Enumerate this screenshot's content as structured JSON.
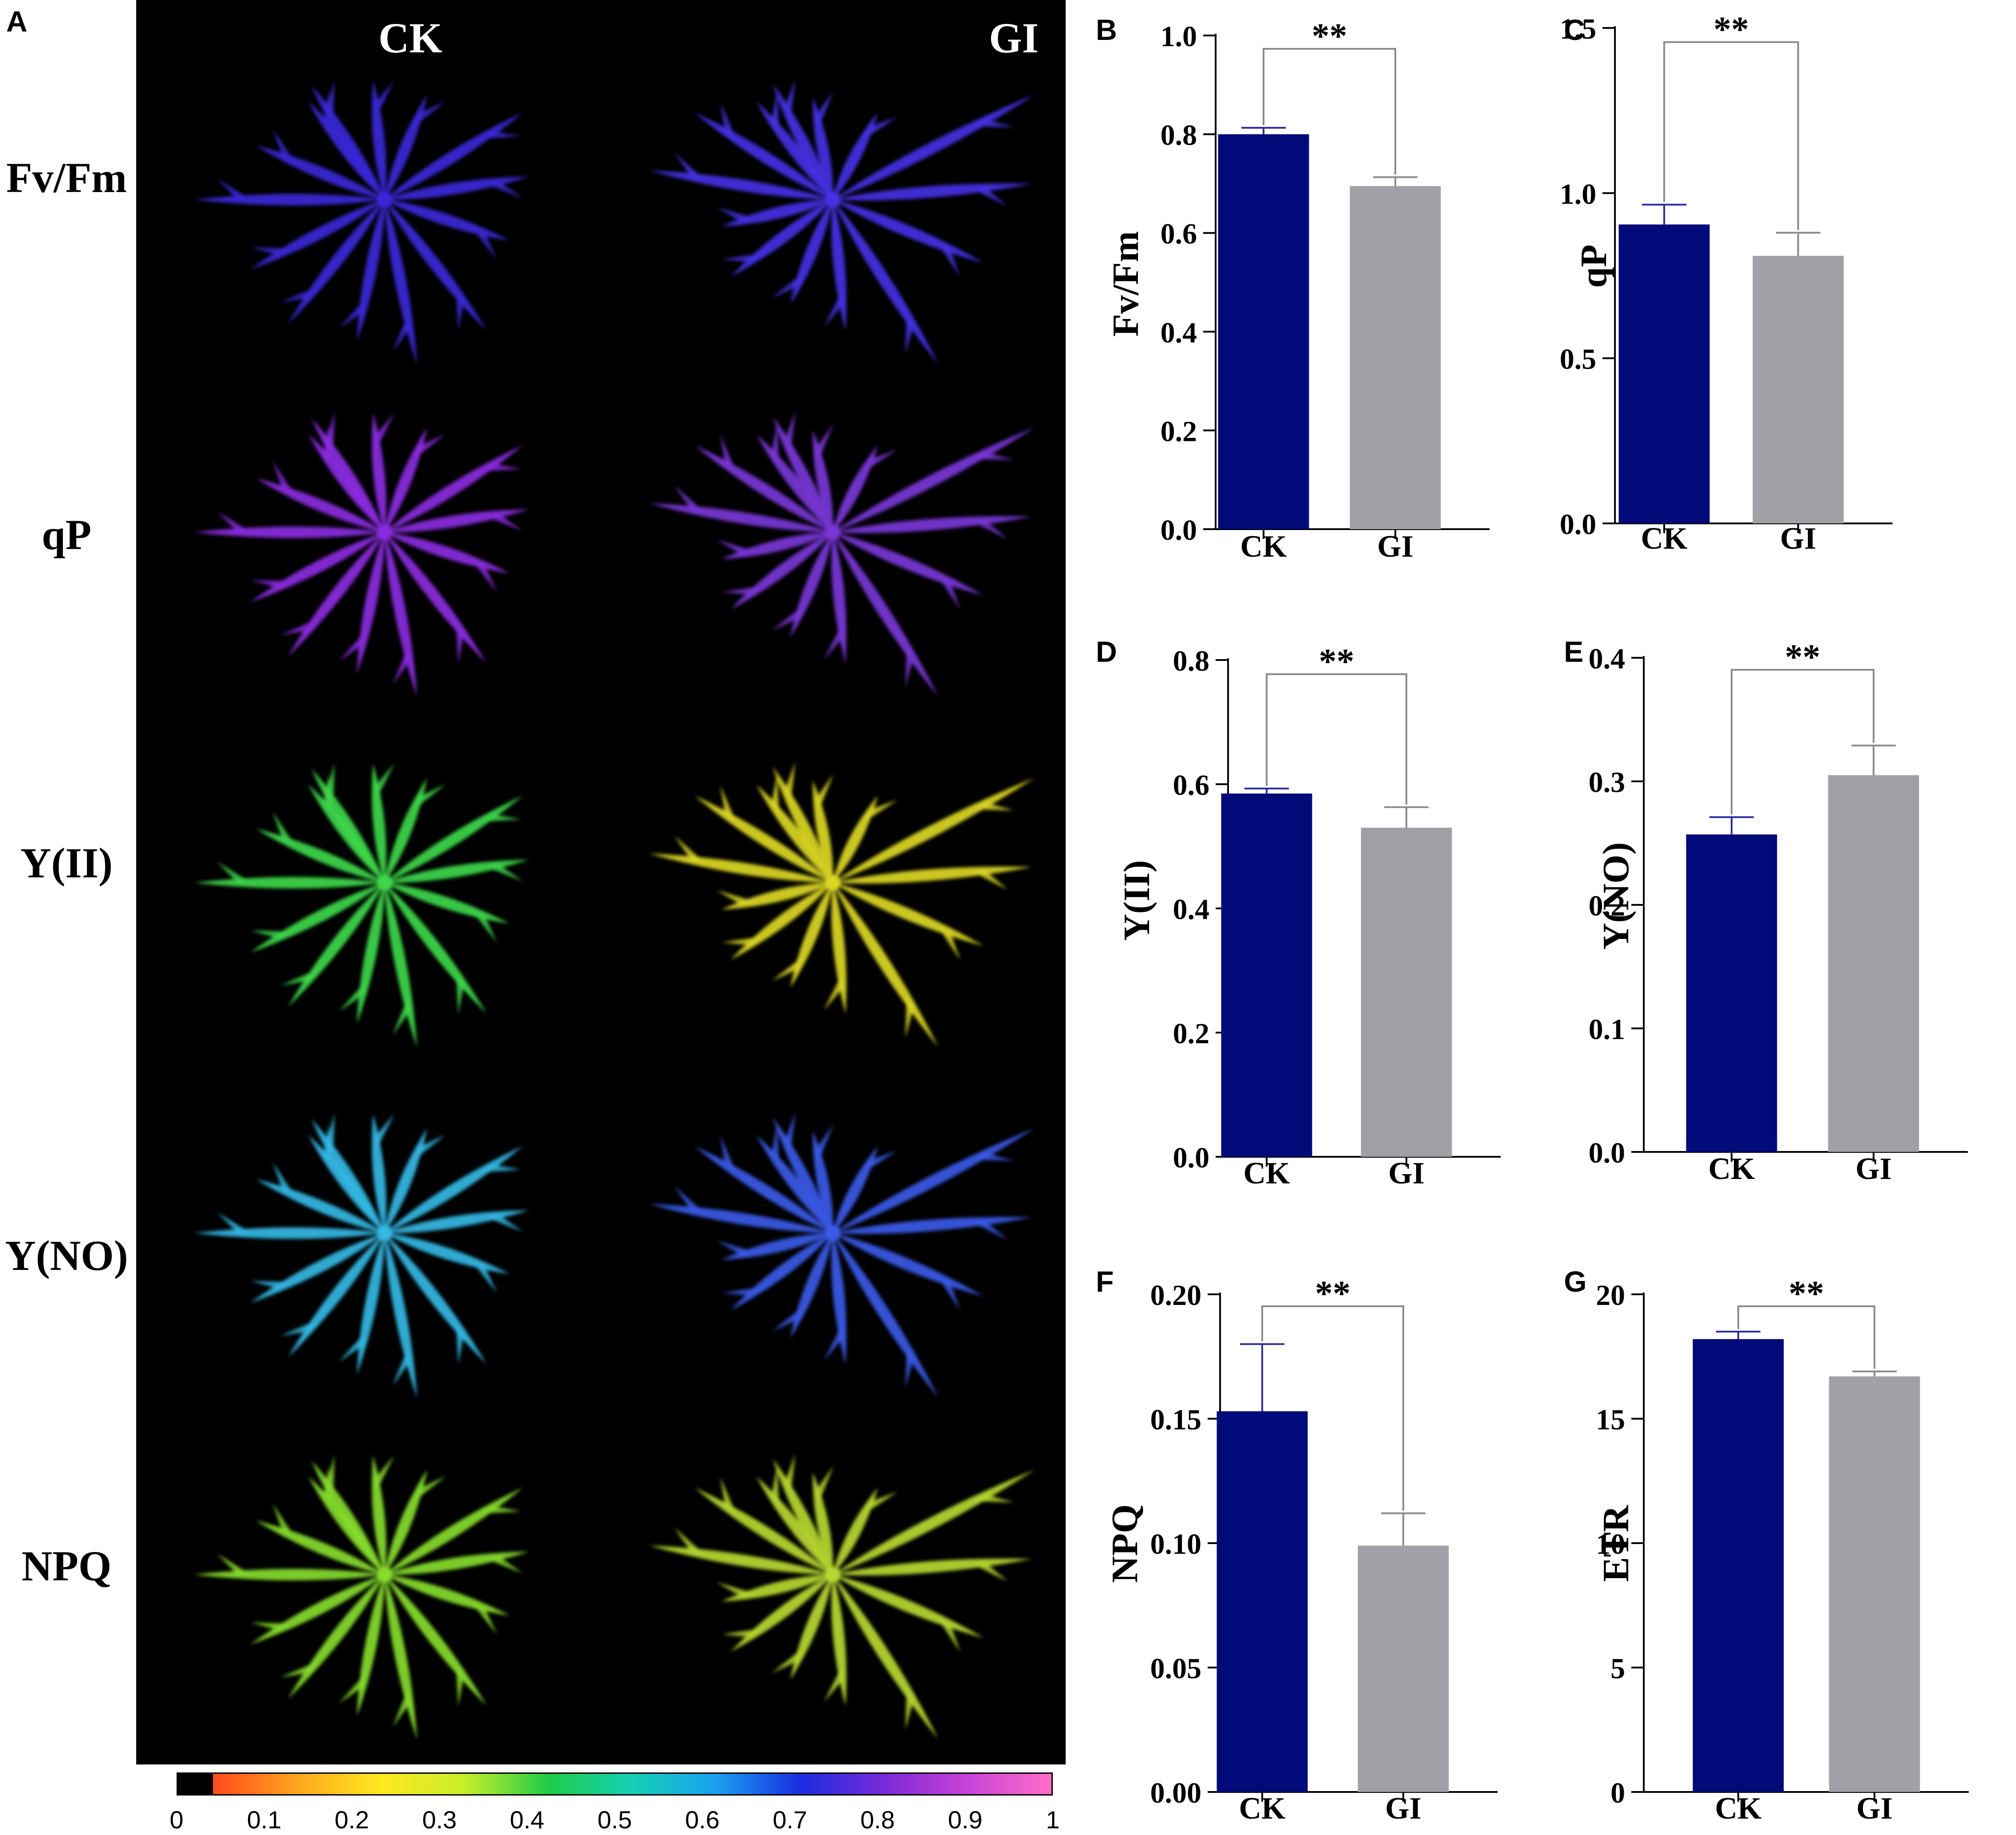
{
  "panel_a": {
    "letter": "A",
    "column_labels": [
      "CK",
      "GI"
    ],
    "row_labels": [
      "Fv/Fm",
      "qP",
      "Y(II)",
      "Y(NO)",
      "NPQ"
    ],
    "colorbar_ticks": [
      "0",
      "0.1",
      "0.2",
      "0.3",
      "0.4",
      "0.5",
      "0.6",
      "0.7",
      "0.8",
      "0.9",
      "1"
    ],
    "colorbar_colors": [
      "#000000",
      "#ff4a1a",
      "#ffa51e",
      "#ffe81e",
      "#c8ee28",
      "#1fcc46",
      "#14d0b4",
      "#1aa0f0",
      "#1a2ee0",
      "#7a2ad8",
      "#c844d8",
      "#ff6cc8"
    ],
    "colormap_by_row": [
      [
        "#3a28d8",
        "#4432e4"
      ],
      [
        "#8a2ae0",
        "#7a36d8"
      ],
      [
        "#3ed84a",
        "#dcd824"
      ],
      [
        "#34b8e4",
        "#3a5ae8"
      ],
      [
        "#86dc2c",
        "#b8d830"
      ]
    ]
  },
  "chart_data": [
    {
      "panel": "B",
      "type": "bar",
      "categories": [
        "CK",
        "GI"
      ],
      "values": [
        0.8,
        0.695
      ],
      "errors": [
        0.013,
        0.018
      ],
      "ylabel": "Fv/Fm",
      "ylim": [
        0,
        1.0
      ],
      "yticks": [
        "0.0",
        "0.2",
        "0.4",
        "0.6",
        "0.8",
        "1.0"
      ],
      "significance": "**",
      "colors": [
        "#000a78",
        "#a0a0a6"
      ]
    },
    {
      "panel": "C",
      "type": "bar",
      "categories": [
        "CK",
        "GI"
      ],
      "values": [
        0.905,
        0.81
      ],
      "errors": [
        0.06,
        0.07
      ],
      "ylabel": "qP",
      "ylim": [
        0,
        1.5
      ],
      "yticks": [
        "0.0",
        "0.5",
        "1.0",
        "1.5"
      ],
      "significance": "**",
      "colors": [
        "#000a78",
        "#a0a0a6"
      ]
    },
    {
      "panel": "D",
      "type": "bar",
      "categories": [
        "CK",
        "GI"
      ],
      "values": [
        0.585,
        0.53
      ],
      "errors": [
        0.008,
        0.033
      ],
      "ylabel": "Y(II)",
      "ylim": [
        0,
        0.8
      ],
      "yticks": [
        "0.0",
        "0.2",
        "0.4",
        "0.6",
        "0.8"
      ],
      "significance": "**",
      "colors": [
        "#000a78",
        "#a0a0a6"
      ]
    },
    {
      "panel": "E",
      "type": "bar",
      "categories": [
        "CK",
        "GI"
      ],
      "values": [
        0.257,
        0.305
      ],
      "errors": [
        0.014,
        0.024
      ],
      "ylabel": "Y(NO)",
      "ylim": [
        0,
        0.4
      ],
      "yticks": [
        "0.0",
        "0.1",
        "0.2",
        "0.3",
        "0.4"
      ],
      "significance": "**",
      "colors": [
        "#000a78",
        "#a0a0a6"
      ]
    },
    {
      "panel": "F",
      "type": "bar",
      "categories": [
        "CK",
        "GI"
      ],
      "values": [
        0.153,
        0.099
      ],
      "errors": [
        0.027,
        0.013
      ],
      "ylabel": "NPQ",
      "ylim": [
        0,
        0.2
      ],
      "yticks": [
        "0.00",
        "0.05",
        "0.10",
        "0.15",
        "0.20"
      ],
      "significance": "**",
      "colors": [
        "#000a78",
        "#a0a0a6"
      ]
    },
    {
      "panel": "G",
      "type": "bar",
      "categories": [
        "CK",
        "GI"
      ],
      "values": [
        18.2,
        16.7
      ],
      "errors": [
        0.3,
        0.2
      ],
      "ylabel": "ETR",
      "ylim": [
        0,
        20
      ],
      "yticks": [
        "0",
        "5",
        "10",
        "15",
        "20"
      ],
      "significance": "**",
      "colors": [
        "#000a78",
        "#a0a0a6"
      ]
    }
  ]
}
